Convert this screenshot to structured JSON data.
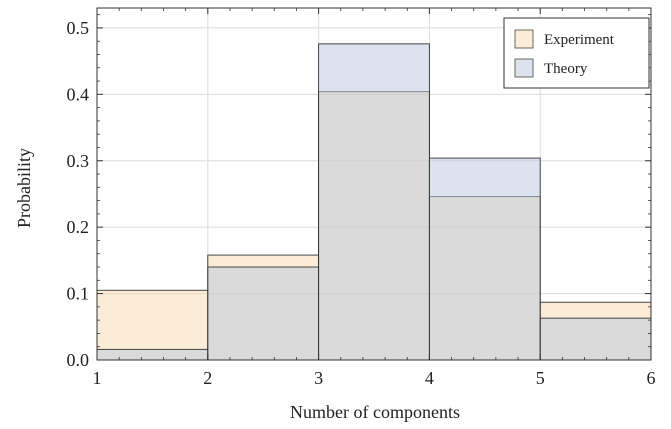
{
  "chart_data": {
    "type": "bar",
    "xlabel": "Number of components",
    "ylabel": "Probability",
    "xlim": [
      1,
      6
    ],
    "ylim": [
      0,
      0.53
    ],
    "xticks": [
      1,
      2,
      3,
      4,
      5,
      6
    ],
    "yticks": [
      0.0,
      0.1,
      0.2,
      0.3,
      0.4,
      0.5
    ],
    "ytick_labels": [
      "0.0",
      "0.1",
      "0.2",
      "0.3",
      "0.4",
      "0.5"
    ],
    "grid": true,
    "legend_position": "top-right",
    "bins": [
      [
        1,
        2
      ],
      [
        2,
        3
      ],
      [
        3,
        4
      ],
      [
        4,
        5
      ],
      [
        5,
        6
      ]
    ],
    "series": [
      {
        "name": "Experiment",
        "color": "#f5d9b0",
        "values": [
          0.105,
          0.158,
          0.404,
          0.246,
          0.087
        ]
      },
      {
        "name": "Theory",
        "color": "#b9c8e0",
        "values": [
          0.016,
          0.14,
          0.476,
          0.304,
          0.063
        ]
      }
    ]
  }
}
